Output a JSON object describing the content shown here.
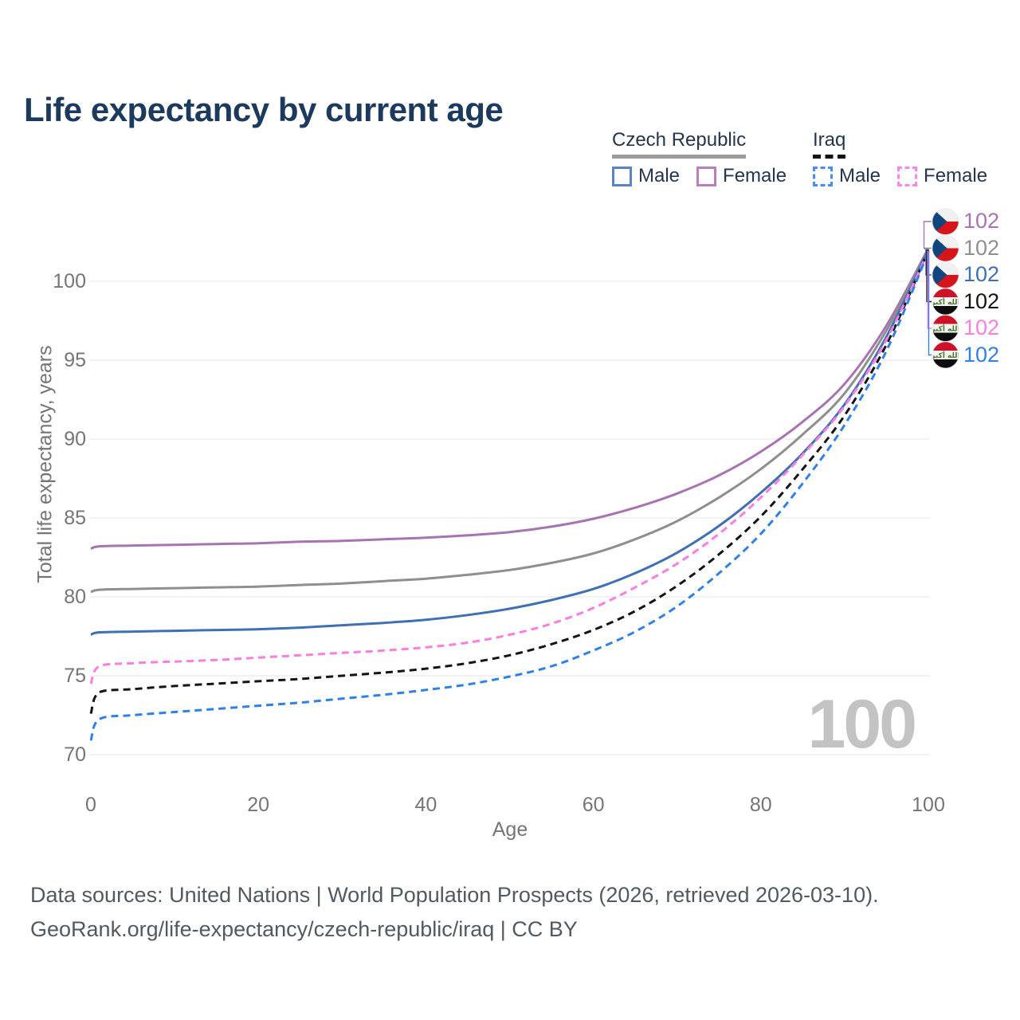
{
  "title": "Life expectancy by current age",
  "legend": {
    "groups": [
      {
        "country": "Czech Republic",
        "underline": "solid",
        "underline_color": "#9c9c9c",
        "items": [
          {
            "label": "Male",
            "swatch_color": "#5b84c6",
            "swatch_style": "solid"
          },
          {
            "label": "Female",
            "swatch_color": "#b980bc",
            "swatch_style": "solid"
          }
        ]
      },
      {
        "country": "Iraq",
        "underline": "dashed",
        "underline_color": "#141414",
        "items": [
          {
            "label": "Male",
            "swatch_color": "#4a8df0",
            "swatch_style": "dashed"
          },
          {
            "label": "Female",
            "swatch_color": "#ff86e8",
            "swatch_style": "dashed"
          }
        ]
      }
    ]
  },
  "chart_data": {
    "type": "line",
    "title": "Life expectancy by current age",
    "xlabel": "Age",
    "ylabel": "Total life expectancy, years",
    "x_ticks": [
      "0",
      "20",
      "40",
      "60",
      "80",
      "100"
    ],
    "x_tick_values": [
      0,
      20,
      40,
      60,
      80,
      100
    ],
    "y_ticks": [
      "70",
      "75",
      "80",
      "85",
      "90",
      "95",
      "100"
    ],
    "y_tick_values": [
      70,
      75,
      80,
      85,
      90,
      95,
      100
    ],
    "xlim": [
      0,
      100
    ],
    "ylim": [
      70,
      102.5
    ],
    "grid": "horizontal",
    "legend_position": "top-right",
    "age_watermark": "100",
    "x": [
      0,
      1,
      5,
      10,
      15,
      20,
      25,
      30,
      35,
      40,
      45,
      50,
      55,
      60,
      65,
      70,
      75,
      80,
      85,
      90,
      95,
      100
    ],
    "series": [
      {
        "name": "Czech Republic Female",
        "country": "Czech Republic",
        "sex": "Female",
        "style": "solid",
        "color": "#a873b3",
        "flag": "cz",
        "end_label": "102",
        "values": [
          83.05,
          83.2,
          83.25,
          83.3,
          83.35,
          83.4,
          83.5,
          83.55,
          83.65,
          83.75,
          83.9,
          84.1,
          84.45,
          84.95,
          85.65,
          86.55,
          87.7,
          89.2,
          91.1,
          93.5,
          97.2,
          102.1
        ]
      },
      {
        "name": "Czech Republic Both sexes",
        "country": "Czech Republic",
        "sex": "Both sexes",
        "style": "solid",
        "color": "#8f8f8f",
        "flag": "cz",
        "end_label": "102",
        "values": [
          80.3,
          80.45,
          80.5,
          80.55,
          80.6,
          80.65,
          80.75,
          80.85,
          81.0,
          81.15,
          81.4,
          81.7,
          82.15,
          82.75,
          83.65,
          84.8,
          86.3,
          88.1,
          90.3,
          92.9,
          96.9,
          102.05
        ]
      },
      {
        "name": "Czech Republic Male",
        "country": "Czech Republic",
        "sex": "Male",
        "style": "solid",
        "color": "#3f6fb5",
        "flag": "cz",
        "end_label": "102",
        "values": [
          77.6,
          77.75,
          77.8,
          77.85,
          77.9,
          77.95,
          78.05,
          78.2,
          78.35,
          78.55,
          78.85,
          79.25,
          79.8,
          80.5,
          81.5,
          82.8,
          84.5,
          86.6,
          89.1,
          92.2,
          96.5,
          102.0
        ]
      },
      {
        "name": "Iraq Both sexes",
        "country": "Iraq",
        "sex": "Both sexes",
        "style": "dashed",
        "color": "#141414",
        "flag": "iq",
        "end_label": "102",
        "values": [
          72.6,
          73.95,
          74.15,
          74.35,
          74.5,
          74.65,
          74.8,
          75.0,
          75.2,
          75.45,
          75.8,
          76.3,
          77.0,
          77.9,
          79.1,
          80.7,
          82.7,
          85.1,
          88.1,
          91.5,
          96.0,
          101.95
        ]
      },
      {
        "name": "Iraq Female",
        "country": "Iraq",
        "sex": "Female",
        "style": "dashed",
        "color": "#ff7ce0",
        "flag": "iq",
        "end_label": "102",
        "values": [
          74.5,
          75.6,
          75.8,
          75.9,
          76.0,
          76.15,
          76.3,
          76.45,
          76.6,
          76.8,
          77.1,
          77.6,
          78.3,
          79.3,
          80.6,
          82.1,
          84.0,
          86.3,
          89.0,
          92.1,
          96.3,
          101.9
        ]
      },
      {
        "name": "Iraq Male",
        "country": "Iraq",
        "sex": "Male",
        "style": "dashed",
        "color": "#2f80e8",
        "flag": "iq",
        "end_label": "102",
        "values": [
          70.9,
          72.25,
          72.5,
          72.7,
          72.9,
          73.1,
          73.3,
          73.55,
          73.8,
          74.1,
          74.45,
          74.95,
          75.6,
          76.6,
          77.8,
          79.4,
          81.5,
          84.0,
          87.2,
          90.9,
          95.6,
          101.85
        ]
      }
    ]
  },
  "footer": {
    "line1": "Data sources: United Nations | World Population Prospects (2026, retrieved 2026-03-10).",
    "line2": "GeoRank.org/life-expectancy/czech-republic/iraq | CC BY"
  },
  "colors": {
    "grid": "#e9e9e9",
    "axis_text": "#757575",
    "title_text": "#1c3a5e",
    "legend_text": "#24364f",
    "footer_text": "#515a61",
    "watermark": "#c3c3c3",
    "flag_cz_blue": "#11457e",
    "flag_cz_red": "#d7141a",
    "flag_iq_red": "#ce1126",
    "flag_iq_green": "#4c7a2a"
  }
}
